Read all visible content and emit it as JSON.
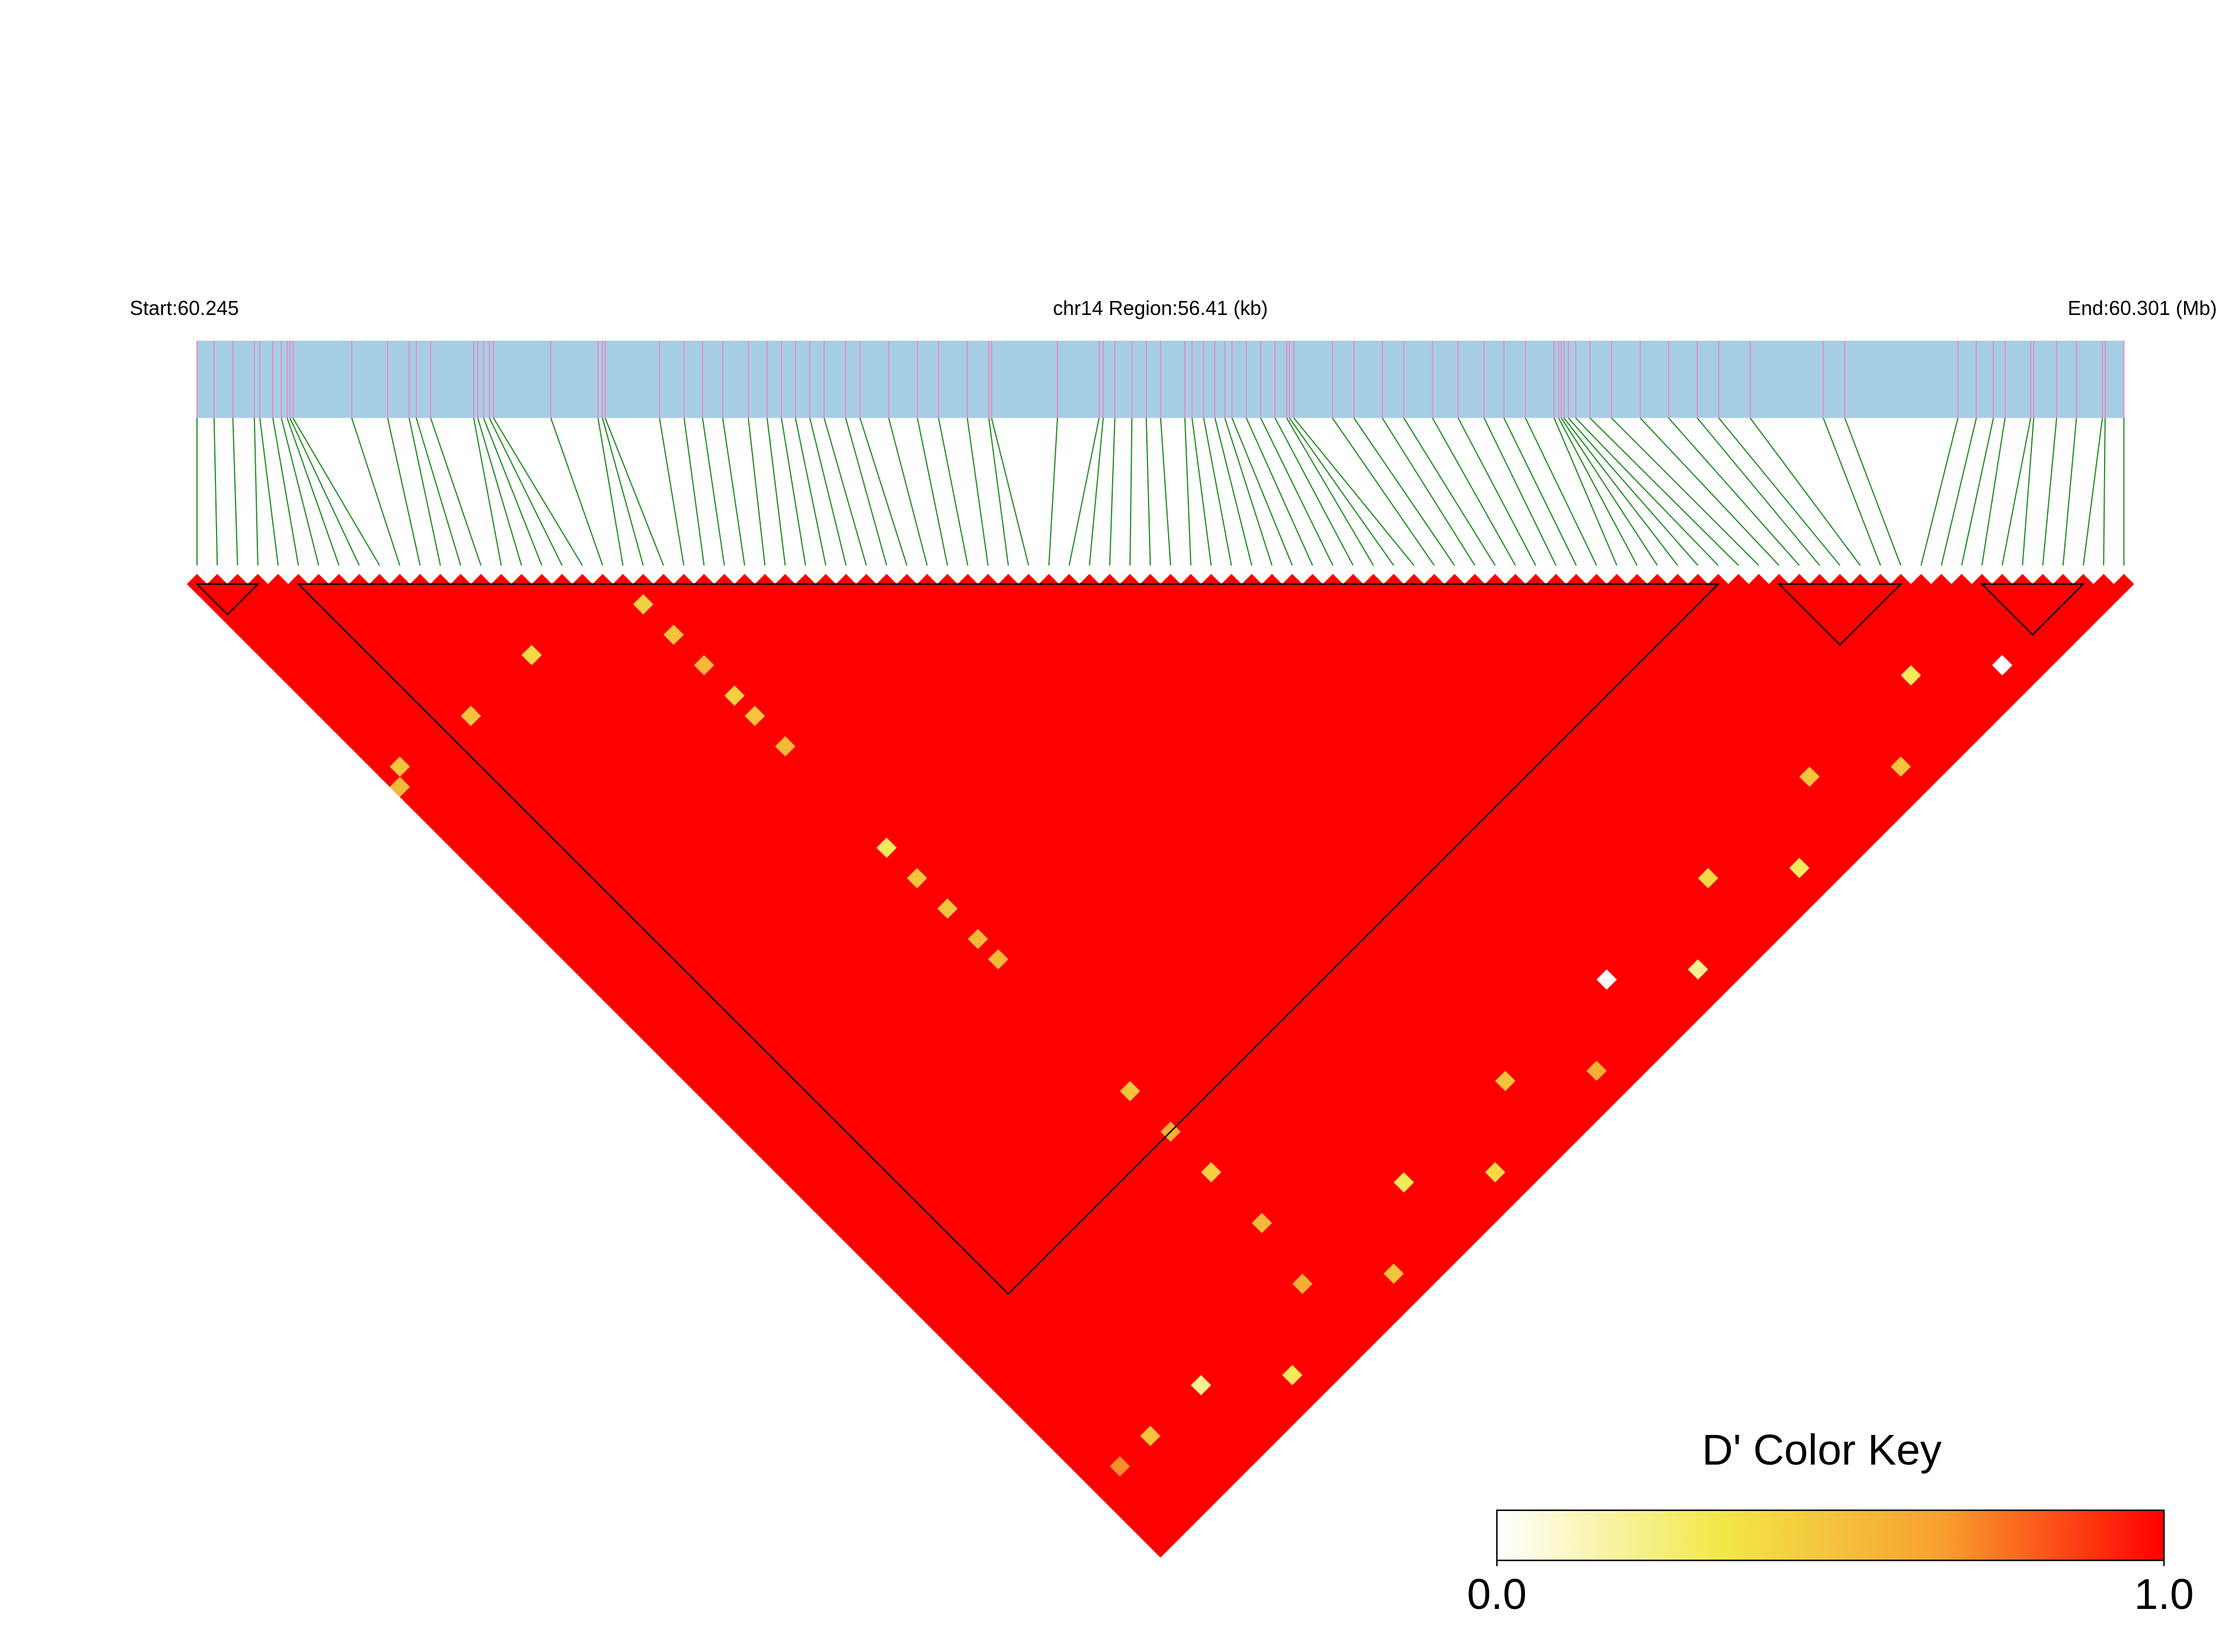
{
  "chart_data": {
    "type": "ld-heatmap",
    "start_label": "Start:60.245",
    "region_label": "chr14 Region:56.41 (kb)",
    "end_label": "End:60.301 (Mb)",
    "xlim": [
      60.245,
      60.30141
    ],
    "positions": [
      60.245,
      60.2455,
      60.24605,
      60.24668,
      60.24684,
      60.24722,
      60.24747,
      60.24764,
      60.24772,
      60.24781,
      60.24953,
      60.25058,
      60.25121,
      60.25142,
      60.25184,
      60.2531,
      60.25322,
      60.25339,
      60.25356,
      60.25368,
      60.25536,
      60.25674,
      60.25687,
      60.25695,
      60.25854,
      60.25926,
      60.2598,
      60.26039,
      60.26114,
      60.26169,
      60.26211,
      60.26252,
      60.26294,
      60.26336,
      60.26399,
      60.26441,
      60.26525,
      60.26609,
      60.26671,
      60.26755,
      60.26818,
      60.26826,
      60.27019,
      60.27141,
      60.27153,
      60.27187,
      60.27237,
      60.27279,
      60.27321,
      60.27392,
      60.27413,
      60.27447,
      60.2748,
      60.27509,
      60.2753,
      60.27572,
      60.27614,
      60.27656,
      60.2769,
      60.27698,
      60.27711,
      60.27824,
      60.27887,
      60.2797,
      60.28033,
      60.28117,
      60.28192,
      60.28268,
      60.28326,
      60.28389,
      60.28473,
      60.28486,
      60.28494,
      60.28502,
      60.28515,
      60.28536,
      60.28578,
      60.28641,
      60.28725,
      60.28808,
      60.28892,
      60.28955,
      60.29047,
      60.29261,
      60.29324,
      60.29655,
      60.29709,
      60.29759,
      60.29793,
      60.29868,
      60.29877,
      60.29944,
      60.30002,
      60.30078,
      60.30086,
      60.30141
    ],
    "blocks": [
      [
        0,
        3
      ],
      [
        5,
        75
      ],
      [
        78,
        84
      ],
      [
        88,
        93
      ]
    ],
    "cells": [
      {
        "i": 21,
        "j": 23,
        "value": 0.45
      },
      {
        "i": 21,
        "j": 26,
        "value": 0.5
      },
      {
        "i": 21,
        "j": 29,
        "value": 0.55
      },
      {
        "i": 21,
        "j": 32,
        "value": 0.45
      },
      {
        "i": 21,
        "j": 34,
        "value": 0.5
      },
      {
        "i": 21,
        "j": 37,
        "value": 0.55
      },
      {
        "i": 13,
        "j": 20,
        "value": 0.4
      },
      {
        "i": 7,
        "j": 20,
        "value": 0.5
      },
      {
        "i": 0,
        "j": 20,
        "value": 0.55
      },
      {
        "i": 1,
        "j": 19,
        "value": 0.5
      },
      {
        "i": 21,
        "j": 47,
        "value": 0.3
      },
      {
        "i": 21,
        "j": 50,
        "value": 0.5
      },
      {
        "i": 21,
        "j": 53,
        "value": 0.5
      },
      {
        "i": 21,
        "j": 56,
        "value": 0.55
      },
      {
        "i": 21,
        "j": 58,
        "value": 0.55
      },
      {
        "i": 21,
        "j": 71,
        "value": 0.5
      },
      {
        "i": 21,
        "j": 75,
        "value": 0.6
      },
      {
        "i": 21,
        "j": 79,
        "value": 0.45
      },
      {
        "i": 21,
        "j": 84,
        "value": 0.55
      },
      {
        "i": 80,
        "j": 89,
        "value": 0.3
      },
      {
        "i": 70,
        "j": 89,
        "value": 0.5
      },
      {
        "i": 60,
        "j": 89,
        "value": 0.4
      },
      {
        "i": 50,
        "j": 89,
        "value": 0.0
      },
      {
        "i": 40,
        "j": 89,
        "value": 0.5
      },
      {
        "i": 30,
        "j": 89,
        "value": 0.3
      },
      {
        "i": 20,
        "j": 89,
        "value": 0.6
      },
      {
        "i": 10,
        "j": 89,
        "value": 0.2
      },
      {
        "i": 5,
        "j": 89,
        "value": 0.5
      },
      {
        "i": 2,
        "j": 89,
        "value": 0.7
      },
      {
        "i": 85,
        "j": 93,
        "value": 0.0
      },
      {
        "i": 75,
        "j": 93,
        "value": 0.5
      },
      {
        "i": 65,
        "j": 93,
        "value": 0.3
      },
      {
        "i": 55,
        "j": 93,
        "value": 0.2
      },
      {
        "i": 45,
        "j": 93,
        "value": 0.6
      },
      {
        "i": 35,
        "j": 93,
        "value": 0.4
      },
      {
        "i": 25,
        "j": 93,
        "value": 0.5
      },
      {
        "i": 15,
        "j": 93,
        "value": 0.3
      }
    ],
    "colorbar_title": "D' Color Key",
    "colors": [
      "#ffffff",
      "#f2e84a",
      "#f7a030",
      "#ff0000"
    ],
    "clim": [
      0,
      1
    ],
    "cticks": [
      {
        "value": 0,
        "label": "0.0"
      },
      {
        "value": 1,
        "label": "1.0"
      }
    ]
  }
}
